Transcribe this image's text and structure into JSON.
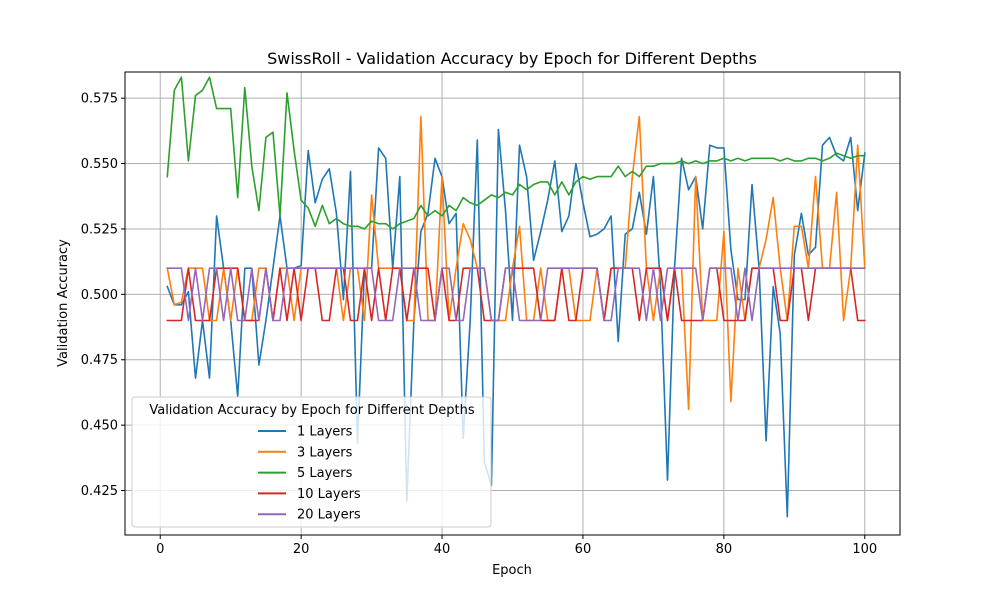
{
  "chart_data": {
    "type": "line",
    "title": "SwissRoll - Validation Accuracy by Epoch for Different Depths",
    "xlabel": "Epoch",
    "ylabel": "Validation Accuracy",
    "xlim": [
      -5,
      105
    ],
    "ylim": [
      0.408,
      0.585
    ],
    "xticks": [
      0,
      20,
      40,
      60,
      80,
      100
    ],
    "yticks": [
      0.425,
      0.45,
      0.475,
      0.5,
      0.525,
      0.55,
      0.575
    ],
    "ytick_labels": [
      "0.425",
      "0.450",
      "0.475",
      "0.500",
      "0.525",
      "0.550",
      "0.575"
    ],
    "grid": true,
    "legend": {
      "title": "Validation Accuracy by Epoch for Different Depths",
      "placement": "lower-left"
    },
    "x": [
      1,
      2,
      3,
      4,
      5,
      6,
      7,
      8,
      9,
      10,
      11,
      12,
      13,
      14,
      15,
      16,
      17,
      18,
      19,
      20,
      21,
      22,
      23,
      24,
      25,
      26,
      27,
      28,
      29,
      30,
      31,
      32,
      33,
      34,
      35,
      36,
      37,
      38,
      39,
      40,
      41,
      42,
      43,
      44,
      45,
      46,
      47,
      48,
      49,
      50,
      51,
      52,
      53,
      54,
      55,
      56,
      57,
      58,
      59,
      60,
      61,
      62,
      63,
      64,
      65,
      66,
      67,
      68,
      69,
      70,
      71,
      72,
      73,
      74,
      75,
      76,
      77,
      78,
      79,
      80,
      81,
      82,
      83,
      84,
      85,
      86,
      87,
      88,
      89,
      90,
      91,
      92,
      93,
      94,
      95,
      96,
      97,
      98,
      99,
      100
    ],
    "series": [
      {
        "name": "1 Layers",
        "color": "#1f77b4",
        "values": [
          0.503,
          0.496,
          0.496,
          0.501,
          0.468,
          0.49,
          0.468,
          0.53,
          0.51,
          0.49,
          0.461,
          0.51,
          0.51,
          0.473,
          0.49,
          0.51,
          0.53,
          0.51,
          0.51,
          0.511,
          0.555,
          0.535,
          0.544,
          0.548,
          0.531,
          0.498,
          0.547,
          0.443,
          0.51,
          0.51,
          0.556,
          0.552,
          0.51,
          0.545,
          0.421,
          0.49,
          0.524,
          0.531,
          0.552,
          0.545,
          0.527,
          0.531,
          0.445,
          0.49,
          0.559,
          0.436,
          0.427,
          0.563,
          0.532,
          0.49,
          0.557,
          0.545,
          0.513,
          0.524,
          0.536,
          0.551,
          0.524,
          0.53,
          0.55,
          0.535,
          0.522,
          0.523,
          0.525,
          0.53,
          0.482,
          0.523,
          0.525,
          0.539,
          0.523,
          0.545,
          0.503,
          0.429,
          0.51,
          0.552,
          0.54,
          0.545,
          0.525,
          0.557,
          0.556,
          0.556,
          0.517,
          0.498,
          0.498,
          0.542,
          0.51,
          0.444,
          0.503,
          0.485,
          0.415,
          0.515,
          0.531,
          0.515,
          0.518,
          0.557,
          0.56,
          0.553,
          0.551,
          0.56,
          0.532,
          0.554
        ]
      },
      {
        "name": "3 Layers",
        "color": "#ff7f0e",
        "values": [
          0.51,
          0.496,
          0.497,
          0.51,
          0.51,
          0.51,
          0.49,
          0.49,
          0.51,
          0.49,
          0.51,
          0.49,
          0.49,
          0.51,
          0.51,
          0.49,
          0.51,
          0.51,
          0.49,
          0.51,
          0.51,
          0.51,
          0.51,
          0.51,
          0.51,
          0.49,
          0.51,
          0.51,
          0.49,
          0.538,
          0.51,
          0.51,
          0.51,
          0.51,
          0.49,
          0.49,
          0.568,
          0.49,
          0.49,
          0.545,
          0.49,
          0.51,
          0.527,
          0.521,
          0.51,
          0.51,
          0.49,
          0.49,
          0.49,
          0.51,
          0.526,
          0.49,
          0.49,
          0.51,
          0.49,
          0.49,
          0.51,
          0.51,
          0.49,
          0.49,
          0.49,
          0.51,
          0.49,
          0.51,
          0.51,
          0.51,
          0.545,
          0.568,
          0.51,
          0.49,
          0.51,
          0.49,
          0.51,
          0.51,
          0.456,
          0.545,
          0.49,
          0.49,
          0.49,
          0.524,
          0.459,
          0.51,
          0.49,
          0.51,
          0.51,
          0.521,
          0.537,
          0.51,
          0.49,
          0.526,
          0.526,
          0.51,
          0.545,
          0.51,
          0.51,
          0.539,
          0.49,
          0.51,
          0.557,
          0.51
        ]
      },
      {
        "name": "5 Layers",
        "color": "#2ca02c",
        "values": [
          0.545,
          0.578,
          0.583,
          0.551,
          0.576,
          0.578,
          0.583,
          0.571,
          0.571,
          0.571,
          0.537,
          0.579,
          0.549,
          0.532,
          0.56,
          0.562,
          0.53,
          0.577,
          0.555,
          0.536,
          0.533,
          0.526,
          0.534,
          0.527,
          0.529,
          0.527,
          0.526,
          0.526,
          0.525,
          0.528,
          0.527,
          0.527,
          0.525,
          0.527,
          0.528,
          0.529,
          0.534,
          0.53,
          0.532,
          0.53,
          0.534,
          0.532,
          0.537,
          0.535,
          0.534,
          0.536,
          0.538,
          0.537,
          0.539,
          0.538,
          0.542,
          0.54,
          0.542,
          0.543,
          0.543,
          0.538,
          0.543,
          0.538,
          0.543,
          0.545,
          0.544,
          0.545,
          0.545,
          0.545,
          0.549,
          0.545,
          0.547,
          0.545,
          0.549,
          0.549,
          0.55,
          0.55,
          0.55,
          0.551,
          0.55,
          0.551,
          0.55,
          0.551,
          0.551,
          0.552,
          0.551,
          0.552,
          0.551,
          0.552,
          0.552,
          0.552,
          0.552,
          0.551,
          0.552,
          0.551,
          0.551,
          0.552,
          0.552,
          0.551,
          0.552,
          0.554,
          0.553,
          0.552,
          0.553,
          0.553
        ]
      },
      {
        "name": "10 Layers",
        "color": "#d62728",
        "values": [
          0.49,
          0.49,
          0.49,
          0.51,
          0.49,
          0.49,
          0.49,
          0.51,
          0.51,
          0.51,
          0.51,
          0.49,
          0.49,
          0.49,
          0.51,
          0.49,
          0.51,
          0.49,
          0.51,
          0.49,
          0.51,
          0.51,
          0.49,
          0.49,
          0.51,
          0.51,
          0.49,
          0.49,
          0.51,
          0.49,
          0.51,
          0.49,
          0.51,
          0.51,
          0.49,
          0.51,
          0.51,
          0.51,
          0.49,
          0.51,
          0.49,
          0.49,
          0.51,
          0.51,
          0.51,
          0.49,
          0.49,
          0.49,
          0.51,
          0.51,
          0.51,
          0.51,
          0.51,
          0.49,
          0.49,
          0.49,
          0.51,
          0.49,
          0.49,
          0.51,
          0.51,
          0.51,
          0.49,
          0.51,
          0.51,
          0.51,
          0.51,
          0.49,
          0.51,
          0.51,
          0.51,
          0.49,
          0.51,
          0.49,
          0.49,
          0.49,
          0.49,
          0.51,
          0.51,
          0.49,
          0.49,
          0.49,
          0.49,
          0.51,
          0.51,
          0.51,
          0.51,
          0.49,
          0.49,
          0.51,
          0.51,
          0.49,
          0.51,
          0.51,
          0.51,
          0.51,
          0.51,
          0.51,
          0.49,
          0.49
        ]
      },
      {
        "name": "20 Layers",
        "color": "#9467bd",
        "values": [
          0.51,
          0.51,
          0.51,
          0.49,
          0.51,
          0.49,
          0.51,
          0.51,
          0.49,
          0.51,
          0.49,
          0.49,
          0.51,
          0.49,
          0.51,
          0.49,
          0.49,
          0.51,
          0.51,
          0.51,
          0.51,
          0.51,
          0.51,
          0.51,
          0.51,
          0.51,
          0.51,
          0.51,
          0.51,
          0.51,
          0.49,
          0.49,
          0.49,
          0.51,
          0.51,
          0.51,
          0.49,
          0.49,
          0.49,
          0.51,
          0.51,
          0.49,
          0.49,
          0.51,
          0.51,
          0.51,
          0.49,
          0.49,
          0.51,
          0.51,
          0.49,
          0.49,
          0.49,
          0.49,
          0.51,
          0.51,
          0.51,
          0.51,
          0.51,
          0.51,
          0.51,
          0.51,
          0.49,
          0.49,
          0.51,
          0.51,
          0.51,
          0.51,
          0.49,
          0.51,
          0.49,
          0.51,
          0.51,
          0.51,
          0.51,
          0.51,
          0.49,
          0.51,
          0.51,
          0.51,
          0.51,
          0.49,
          0.51,
          0.49,
          0.51,
          0.51,
          0.51,
          0.51,
          0.51,
          0.51,
          0.51,
          0.51,
          0.51,
          0.51,
          0.51,
          0.51,
          0.51,
          0.51,
          0.51,
          0.51
        ]
      }
    ]
  }
}
